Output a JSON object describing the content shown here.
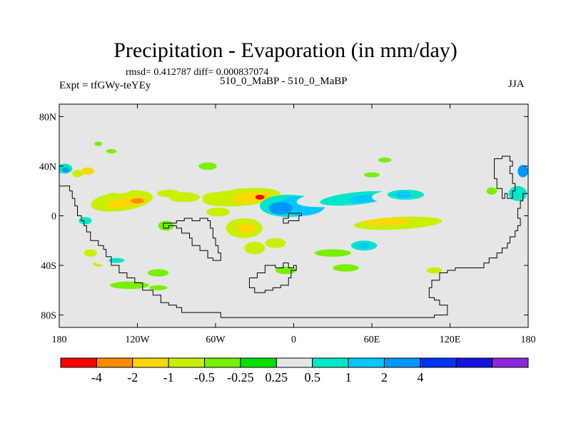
{
  "title": "Precipitation - Evaporation (in mm/day)",
  "stats_line": "rmsd= 0.412787 diff= 0.000837074",
  "left_subtitle": "Expt = tfGWy-teYEy",
  "center_subtitle": "510_0_MaBP - 510_0_MaBP",
  "right_subtitle": "JJA",
  "map": {
    "lon_range": [
      -180,
      180
    ],
    "lat_range": [
      -90,
      90
    ],
    "background_color": "#e6e6e6",
    "lat_ticks": [
      {
        "value": 80,
        "label": "80N"
      },
      {
        "value": 40,
        "label": "40N"
      },
      {
        "value": 0,
        "label": "0"
      },
      {
        "value": -40,
        "label": "40S"
      },
      {
        "value": -80,
        "label": "80S"
      }
    ],
    "lon_ticks": [
      {
        "value": -180,
        "label": "180"
      },
      {
        "value": -120,
        "label": "120W"
      },
      {
        "value": -60,
        "label": "60W"
      },
      {
        "value": 0,
        "label": "0"
      },
      {
        "value": 60,
        "label": "60E"
      },
      {
        "value": 120,
        "label": "120E"
      },
      {
        "value": 180,
        "label": "180"
      }
    ],
    "coastlines": [
      [
        [
          -180,
          24
        ],
        [
          -174,
          24
        ],
        [
          -172,
          20
        ],
        [
          -170,
          14
        ],
        [
          -168,
          8
        ],
        [
          -166,
          0
        ],
        [
          -163,
          -4
        ],
        [
          -161,
          -8
        ],
        [
          -159,
          -13
        ],
        [
          -156,
          -20
        ],
        [
          -150,
          -24
        ],
        [
          -146,
          -27
        ],
        [
          -144,
          -33
        ],
        [
          -140,
          -40
        ],
        [
          -134,
          -46
        ],
        [
          -128,
          -50
        ],
        [
          -122,
          -54
        ],
        [
          -116,
          -60
        ],
        [
          -108,
          -64
        ],
        [
          -102,
          -70
        ],
        [
          -96,
          -72
        ],
        [
          -90,
          -74
        ],
        [
          -86,
          -78
        ],
        [
          -56,
          -82
        ],
        [
          40,
          -82
        ],
        [
          100,
          -82
        ],
        [
          108,
          -80
        ],
        [
          118,
          -80
        ],
        [
          118,
          -72
        ],
        [
          112,
          -68
        ],
        [
          108,
          -66
        ],
        [
          104,
          -58
        ],
        [
          106,
          -52
        ],
        [
          112,
          -46
        ],
        [
          118,
          -44
        ],
        [
          124,
          -42
        ],
        [
          140,
          -42
        ],
        [
          146,
          -38
        ],
        [
          150,
          -34
        ],
        [
          156,
          -30
        ],
        [
          160,
          -26
        ],
        [
          164,
          -22
        ],
        [
          166,
          -17
        ],
        [
          170,
          -12
        ],
        [
          172,
          -8
        ],
        [
          174,
          -2
        ],
        [
          172,
          6
        ],
        [
          174,
          12
        ],
        [
          176,
          18
        ],
        [
          180,
          20
        ]
      ],
      [
        [
          -100,
          -10
        ],
        [
          -96,
          -8
        ],
        [
          -90,
          -10
        ],
        [
          -86,
          -14
        ],
        [
          -80,
          -18
        ],
        [
          -78,
          -24
        ],
        [
          -72,
          -28
        ],
        [
          -66,
          -34
        ],
        [
          -62,
          -36
        ],
        [
          -58,
          -36
        ],
        [
          -56,
          -30
        ],
        [
          -58,
          -24
        ],
        [
          -60,
          -18
        ],
        [
          -62,
          -10
        ],
        [
          -64,
          -4
        ],
        [
          -66,
          -2
        ],
        [
          -72,
          -4
        ],
        [
          -78,
          -2
        ],
        [
          -84,
          -4
        ],
        [
          -90,
          -6
        ],
        [
          -100,
          -10
        ]
      ],
      [
        [
          -34,
          -50
        ],
        [
          -28,
          -46
        ],
        [
          -22,
          -40
        ],
        [
          -14,
          -42
        ],
        [
          -8,
          -38
        ],
        [
          -4,
          -42
        ],
        [
          0,
          -40
        ],
        [
          2,
          -44
        ],
        [
          -2,
          -50
        ],
        [
          -4,
          -56
        ],
        [
          -10,
          -58
        ],
        [
          -16,
          -60
        ],
        [
          -22,
          -62
        ],
        [
          -30,
          -58
        ],
        [
          -34,
          -54
        ],
        [
          -34,
          -50
        ]
      ],
      [
        [
          -8,
          -2
        ],
        [
          -4,
          2
        ],
        [
          2,
          2
        ],
        [
          6,
          0
        ],
        [
          4,
          -4
        ],
        [
          0,
          -4
        ],
        [
          -4,
          -6
        ],
        [
          -8,
          -2
        ]
      ],
      [
        [
          154,
          46
        ],
        [
          160,
          48
        ],
        [
          166,
          44
        ],
        [
          168,
          40
        ],
        [
          166,
          34
        ],
        [
          168,
          26
        ],
        [
          170,
          20
        ],
        [
          168,
          14
        ],
        [
          164,
          18
        ],
        [
          162,
          14
        ],
        [
          160,
          22
        ],
        [
          156,
          30
        ],
        [
          154,
          38
        ],
        [
          154,
          46
        ]
      ]
    ],
    "colorbar": {
      "colors": [
        "#ff0000",
        "#ff8c00",
        "#ffd700",
        "#c8f000",
        "#78f000",
        "#00e000",
        "#e6e6e6",
        "#00e6c8",
        "#00c8ff",
        "#0096ff",
        "#0032ff",
        "#1414dc",
        "#8c28dc"
      ],
      "labels": [
        "-4",
        "-2",
        "-1",
        "-0.5",
        "-0.25",
        "0.25",
        "0.5",
        "1",
        "2",
        "4"
      ]
    },
    "field_blobs": [
      {
        "lon": -132,
        "lat": 12,
        "rx": 24,
        "ry": 8,
        "level": "-0.5",
        "rot": -8
      },
      {
        "lon": -128,
        "lat": 11,
        "rx": 16,
        "ry": 4,
        "level": "-1",
        "rot": -8
      },
      {
        "lon": -120,
        "lat": 12,
        "rx": 5,
        "ry": 2.2,
        "level": "-2"
      },
      {
        "lon": -96,
        "lat": 18,
        "rx": 9,
        "ry": 3,
        "level": "-0.5"
      },
      {
        "lon": -84,
        "lat": 15,
        "rx": 12,
        "ry": 4,
        "level": "-0.5"
      },
      {
        "lon": -60,
        "lat": 15,
        "rx": 10,
        "ry": 4,
        "level": "-0.5"
      },
      {
        "lon": -58,
        "lat": 3,
        "rx": 9,
        "ry": 3.5,
        "level": "-0.5"
      },
      {
        "lon": -40,
        "lat": 15,
        "rx": 30,
        "ry": 7,
        "level": "-0.5",
        "rot": -5
      },
      {
        "lon": -32,
        "lat": 15,
        "rx": 16,
        "ry": 4,
        "level": "-1",
        "rot": -5
      },
      {
        "lon": -26,
        "lat": 15,
        "rx": 3.5,
        "ry": 2,
        "level": "-4"
      },
      {
        "lon": -38,
        "lat": -10,
        "rx": 14,
        "ry": 8,
        "level": "-0.5"
      },
      {
        "lon": -36,
        "lat": -10,
        "rx": 7,
        "ry": 4,
        "level": "-1"
      },
      {
        "lon": -30,
        "lat": -26,
        "rx": 8,
        "ry": 5,
        "level": "-0.5"
      },
      {
        "lon": -14,
        "lat": -22,
        "rx": 8,
        "ry": 4,
        "level": "-0.5"
      },
      {
        "lon": -66,
        "lat": 40,
        "rx": 7,
        "ry": 3,
        "level": "-0.25"
      },
      {
        "lon": -98,
        "lat": -8,
        "rx": 6,
        "ry": 4,
        "level": "-0.25"
      },
      {
        "lon": -156,
        "lat": -30,
        "rx": 5,
        "ry": 3,
        "level": "-0.5"
      },
      {
        "lon": -150,
        "lat": -38,
        "rx": 4,
        "ry": 3,
        "level": "-0.5"
      },
      {
        "lon": -126,
        "lat": -56,
        "rx": 15,
        "ry": 3,
        "level": "-0.25"
      },
      {
        "lon": -104,
        "lat": -46,
        "rx": 8,
        "ry": 3,
        "level": "-0.25"
      },
      {
        "lon": -104,
        "lat": -58,
        "rx": 7,
        "ry": 2,
        "level": "-0.25"
      },
      {
        "lon": 80,
        "lat": -6,
        "rx": 34,
        "ry": 5,
        "level": "-0.5",
        "rot": -3
      },
      {
        "lon": 72,
        "lat": -5,
        "rx": 18,
        "ry": 3,
        "level": "-1",
        "rot": -3
      },
      {
        "lon": 30,
        "lat": -30,
        "rx": 14,
        "ry": 3,
        "level": "-0.25"
      },
      {
        "lon": 40,
        "lat": -42,
        "rx": 10,
        "ry": 3,
        "level": "-0.25"
      },
      {
        "lon": 108,
        "lat": -44,
        "rx": 6,
        "ry": 2.5,
        "level": "-0.5"
      },
      {
        "lon": 152,
        "lat": 20,
        "rx": 4,
        "ry": 3,
        "level": "-0.25"
      },
      {
        "lon": 70,
        "lat": 45,
        "rx": 5,
        "ry": 2,
        "level": "-0.25"
      },
      {
        "lon": 60,
        "lat": 33,
        "rx": 6,
        "ry": 2,
        "level": "-0.25"
      },
      {
        "lon": -140,
        "lat": 52,
        "rx": 4,
        "ry": 1.8,
        "level": "-0.25"
      },
      {
        "lon": -150,
        "lat": 58,
        "rx": 3,
        "ry": 1.8,
        "level": "-0.25"
      },
      {
        "lon": -166,
        "lat": 34,
        "rx": 4,
        "ry": 3,
        "level": "-0.5"
      },
      {
        "lon": -158,
        "lat": 36,
        "rx": 5,
        "ry": 3,
        "level": "-1"
      },
      {
        "lon": -176,
        "lat": 6,
        "rx": 6,
        "ry": 8,
        "level": "0.25"
      },
      {
        "lon": -176,
        "lat": 38,
        "rx": 6,
        "ry": 4,
        "level": "0.5"
      },
      {
        "lon": -175,
        "lat": 37,
        "rx": 3,
        "ry": 2,
        "level": "2"
      },
      {
        "lon": -134,
        "lat": 22,
        "rx": 10,
        "ry": 4,
        "level": "0.25"
      },
      {
        "lon": -126,
        "lat": 26,
        "rx": 14,
        "ry": 3,
        "level": "0.25"
      },
      {
        "lon": -156,
        "lat": -2,
        "rx": 10,
        "ry": 6,
        "level": "0.25"
      },
      {
        "lon": -160,
        "lat": -4,
        "rx": 5,
        "ry": 3,
        "level": "0.5"
      },
      {
        "lon": -152,
        "lat": -20,
        "rx": 5,
        "ry": 4,
        "level": "0.25"
      },
      {
        "lon": -140,
        "lat": -36,
        "rx": 14,
        "ry": 4,
        "level": "0.25"
      },
      {
        "lon": -136,
        "lat": -36,
        "rx": 6,
        "ry": 2,
        "level": "0.5"
      },
      {
        "lon": -150,
        "lat": -60,
        "rx": 6,
        "ry": 2,
        "level": "0.25"
      },
      {
        "lon": -54,
        "lat": 31,
        "rx": 10,
        "ry": 5,
        "level": "0.25"
      },
      {
        "lon": -52,
        "lat": 22,
        "rx": 6,
        "ry": 2,
        "level": "0.25"
      },
      {
        "lon": -4,
        "lat": 8,
        "rx": 22,
        "ry": 9,
        "level": "0.5"
      },
      {
        "lon": 6,
        "lat": 8,
        "rx": 18,
        "ry": 8,
        "level": "1"
      },
      {
        "lon": -10,
        "lat": 6,
        "rx": 9,
        "ry": 5,
        "level": "2"
      },
      {
        "lon": 38,
        "lat": 15,
        "rx": 36,
        "ry": 7,
        "level": "0.25",
        "rot": -6
      },
      {
        "lon": 48,
        "lat": 14,
        "rx": 28,
        "ry": 5,
        "level": "0.5",
        "rot": -6
      },
      {
        "lon": 56,
        "lat": 14,
        "rx": 14,
        "ry": 3,
        "level": "1",
        "rot": -6
      },
      {
        "lon": 84,
        "lat": 15,
        "rx": 24,
        "ry": 6,
        "level": "0.25"
      },
      {
        "lon": 86,
        "lat": 17,
        "rx": 14,
        "ry": 4,
        "level": "0.5"
      },
      {
        "lon": 84,
        "lat": 17,
        "rx": 6,
        "ry": 3,
        "level": "1"
      },
      {
        "lon": 68,
        "lat": -20,
        "rx": 26,
        "ry": 6,
        "level": "0.25"
      },
      {
        "lon": 54,
        "lat": -24,
        "rx": 10,
        "ry": 4,
        "level": "0.5"
      },
      {
        "lon": 54,
        "lat": -24,
        "rx": 5,
        "ry": 2,
        "level": "1"
      },
      {
        "lon": 10,
        "lat": -18,
        "rx": 10,
        "ry": 4,
        "level": "0.25"
      },
      {
        "lon": 20,
        "lat": -43,
        "rx": 10,
        "ry": 3,
        "level": "0.25"
      },
      {
        "lon": 58,
        "lat": -40,
        "rx": 8,
        "ry": 3,
        "level": "0.25"
      },
      {
        "lon": 118,
        "lat": -26,
        "rx": 12,
        "ry": 5,
        "level": "0.25"
      },
      {
        "lon": 126,
        "lat": -44,
        "rx": 8,
        "ry": 3,
        "level": "0.25"
      },
      {
        "lon": 142,
        "lat": -40,
        "rx": 6,
        "ry": 3,
        "level": "0.25"
      },
      {
        "lon": 174,
        "lat": 30,
        "rx": 8,
        "ry": 14,
        "level": "0.25"
      },
      {
        "lon": 172,
        "lat": 18,
        "rx": 7,
        "ry": 6,
        "level": "0.5"
      },
      {
        "lon": 176,
        "lat": 36,
        "rx": 4,
        "ry": 5,
        "level": "2"
      },
      {
        "lon": 168,
        "lat": -2,
        "rx": 10,
        "ry": 8,
        "level": "0.25"
      },
      {
        "lon": -6,
        "lat": -44,
        "rx": 8,
        "ry": 3,
        "level": "-0.25"
      }
    ]
  }
}
